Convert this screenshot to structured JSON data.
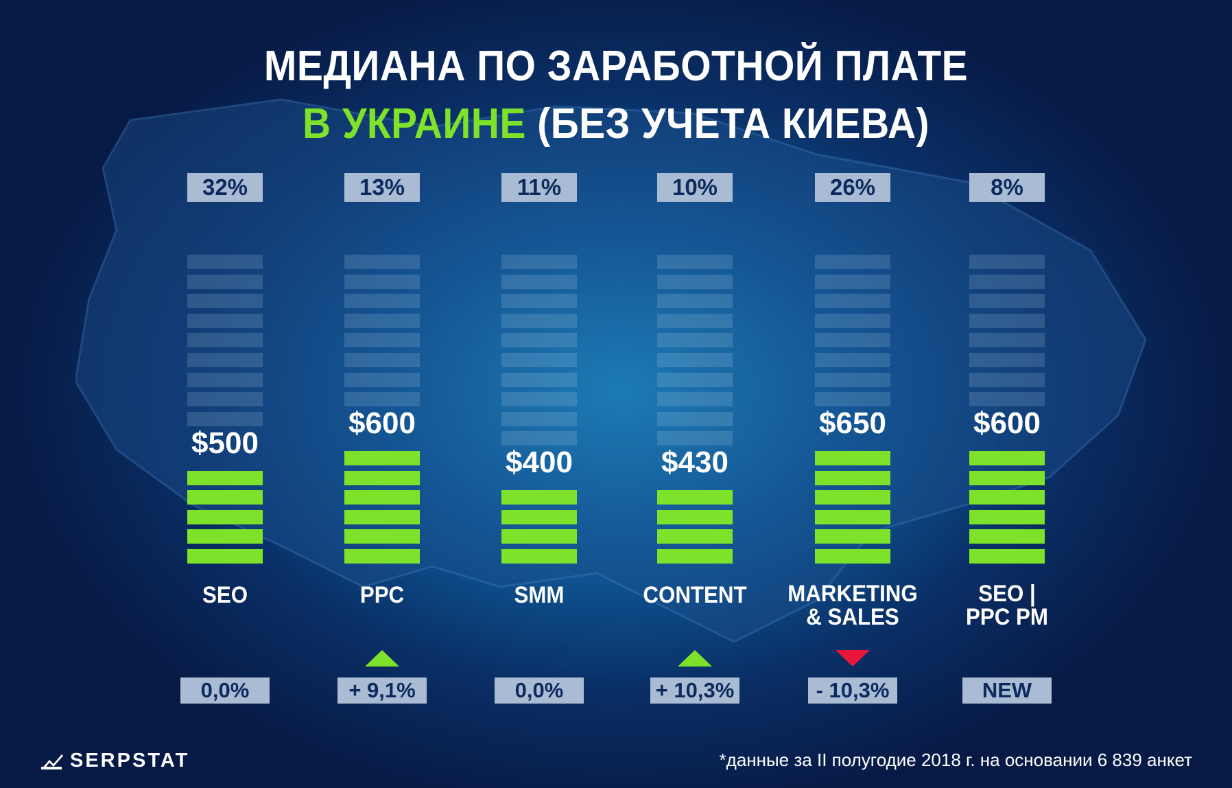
{
  "title": {
    "line1": "МЕДИАНА ПО ЗАРАБОТНОЙ ПЛАТЕ",
    "line2_accent": "В УКРАИНЕ",
    "line2_rest": " (БЕЗ УЧЕТА КИЕВА)"
  },
  "colors": {
    "accent": "#7ee22a",
    "label_box": "#a9bcd3",
    "label_text": "#0c2a5e",
    "down": "#e8173a"
  },
  "chart_data": {
    "type": "bar",
    "categories": [
      "SEO",
      "PPC",
      "SMM",
      "CONTENT",
      "MARKETING & SALES",
      "SEO | PPC PM"
    ],
    "label_lines": [
      [
        "SEO"
      ],
      [
        "PPC"
      ],
      [
        "SMM"
      ],
      [
        "CONTENT"
      ],
      [
        "MARKETING",
        "& SALES"
      ],
      [
        "SEO |",
        "PPC PM"
      ]
    ],
    "values": [
      500,
      600,
      400,
      430,
      650,
      600
    ],
    "value_labels": [
      "$500",
      "$600",
      "$400",
      "$430",
      "$650",
      "$600"
    ],
    "shares": [
      "32%",
      "13%",
      "11%",
      "10%",
      "26%",
      "8%"
    ],
    "changes": [
      "0,0%",
      "+ 9,1%",
      "0,0%",
      "+ 10,3%",
      "- 10,3%",
      "NEW"
    ],
    "change_direction": [
      "none",
      "up",
      "none",
      "up",
      "down",
      "none"
    ],
    "filled_segments": [
      5,
      6,
      4,
      4,
      6,
      6
    ],
    "total_segments": 16
  },
  "footer": {
    "logo": "SERPSTAT",
    "footnote": "*данные за II полугодие 2018 г. на основании 6 839 анкет"
  }
}
